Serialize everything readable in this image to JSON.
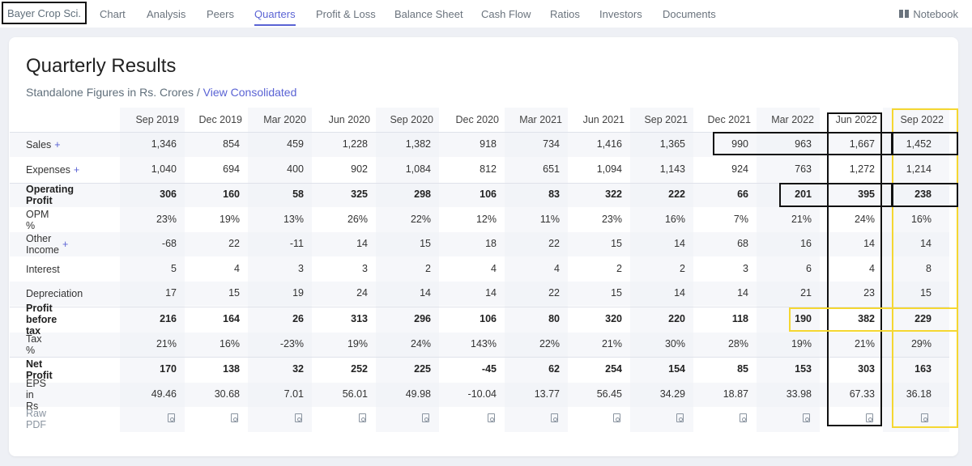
{
  "nav": {
    "company": "Bayer Crop Sci.",
    "tabs": [
      "Chart",
      "Analysis",
      "Peers",
      "Quarters",
      "Profit & Loss",
      "Balance Sheet",
      "Cash Flow",
      "Ratios",
      "Investors",
      "Documents"
    ],
    "active_tab": "Quarters",
    "notebook": "Notebook"
  },
  "section": {
    "title": "Quarterly Results",
    "subtitle": "Standalone Figures in Rs. Crores /",
    "link": "View Consolidated"
  },
  "table": {
    "columns": [
      "Sep 2019",
      "Dec 2019",
      "Mar 2020",
      "Jun 2020",
      "Sep 2020",
      "Dec 2020",
      "Mar 2021",
      "Jun 2021",
      "Sep 2021",
      "Dec 2021",
      "Mar 2022",
      "Jun 2022",
      "Sep 2022"
    ],
    "rows": [
      {
        "label": "Sales",
        "plus": "+",
        "bold": false,
        "values": [
          "1,346",
          "854",
          "459",
          "1,228",
          "1,382",
          "918",
          "734",
          "1,416",
          "1,365",
          "990",
          "963",
          "1,667",
          "1,452"
        ]
      },
      {
        "label": "Expenses",
        "plus": "+",
        "bold": false,
        "values": [
          "1,040",
          "694",
          "400",
          "902",
          "1,084",
          "812",
          "651",
          "1,094",
          "1,143",
          "924",
          "763",
          "1,272",
          "1,214"
        ]
      },
      {
        "label": "Operating Profit",
        "plus": "",
        "bold": true,
        "values": [
          "306",
          "160",
          "58",
          "325",
          "298",
          "106",
          "83",
          "322",
          "222",
          "66",
          "201",
          "395",
          "238"
        ]
      },
      {
        "label": "OPM %",
        "plus": "",
        "bold": false,
        "values": [
          "23%",
          "19%",
          "13%",
          "26%",
          "22%",
          "12%",
          "11%",
          "23%",
          "16%",
          "7%",
          "21%",
          "24%",
          "16%"
        ]
      },
      {
        "label": "Other Income",
        "plus": "+",
        "bold": false,
        "values": [
          "-68",
          "22",
          "-11",
          "14",
          "15",
          "18",
          "22",
          "15",
          "14",
          "68",
          "16",
          "14",
          "14"
        ]
      },
      {
        "label": "Interest",
        "plus": "",
        "bold": false,
        "values": [
          "5",
          "4",
          "3",
          "3",
          "2",
          "4",
          "4",
          "2",
          "2",
          "3",
          "6",
          "4",
          "8"
        ]
      },
      {
        "label": "Depreciation",
        "plus": "",
        "bold": false,
        "values": [
          "17",
          "15",
          "19",
          "24",
          "14",
          "14",
          "22",
          "15",
          "14",
          "14",
          "21",
          "23",
          "15"
        ]
      },
      {
        "label": "Profit before tax",
        "plus": "",
        "bold": true,
        "values": [
          "216",
          "164",
          "26",
          "313",
          "296",
          "106",
          "80",
          "320",
          "220",
          "118",
          "190",
          "382",
          "229"
        ]
      },
      {
        "label": "Tax %",
        "plus": "",
        "bold": false,
        "values": [
          "21%",
          "16%",
          "-23%",
          "19%",
          "24%",
          "143%",
          "22%",
          "21%",
          "30%",
          "28%",
          "19%",
          "21%",
          "29%"
        ]
      },
      {
        "label": "Net Profit",
        "plus": "",
        "bold": true,
        "values": [
          "170",
          "138",
          "32",
          "252",
          "225",
          "-45",
          "62",
          "254",
          "154",
          "85",
          "153",
          "303",
          "163"
        ]
      },
      {
        "label": "EPS in Rs",
        "plus": "",
        "bold": false,
        "values": [
          "49.46",
          "30.68",
          "7.01",
          "56.01",
          "49.98",
          "-10.04",
          "13.77",
          "56.45",
          "34.29",
          "18.87",
          "33.98",
          "67.33",
          "36.18"
        ]
      }
    ],
    "pdf_row_label": "Raw PDF",
    "pdf_icon": "pdf-icon"
  },
  "colors": {
    "accent": "#5a63d4",
    "highlight_black": "#111111",
    "highlight_yellow": "#f5d731"
  }
}
